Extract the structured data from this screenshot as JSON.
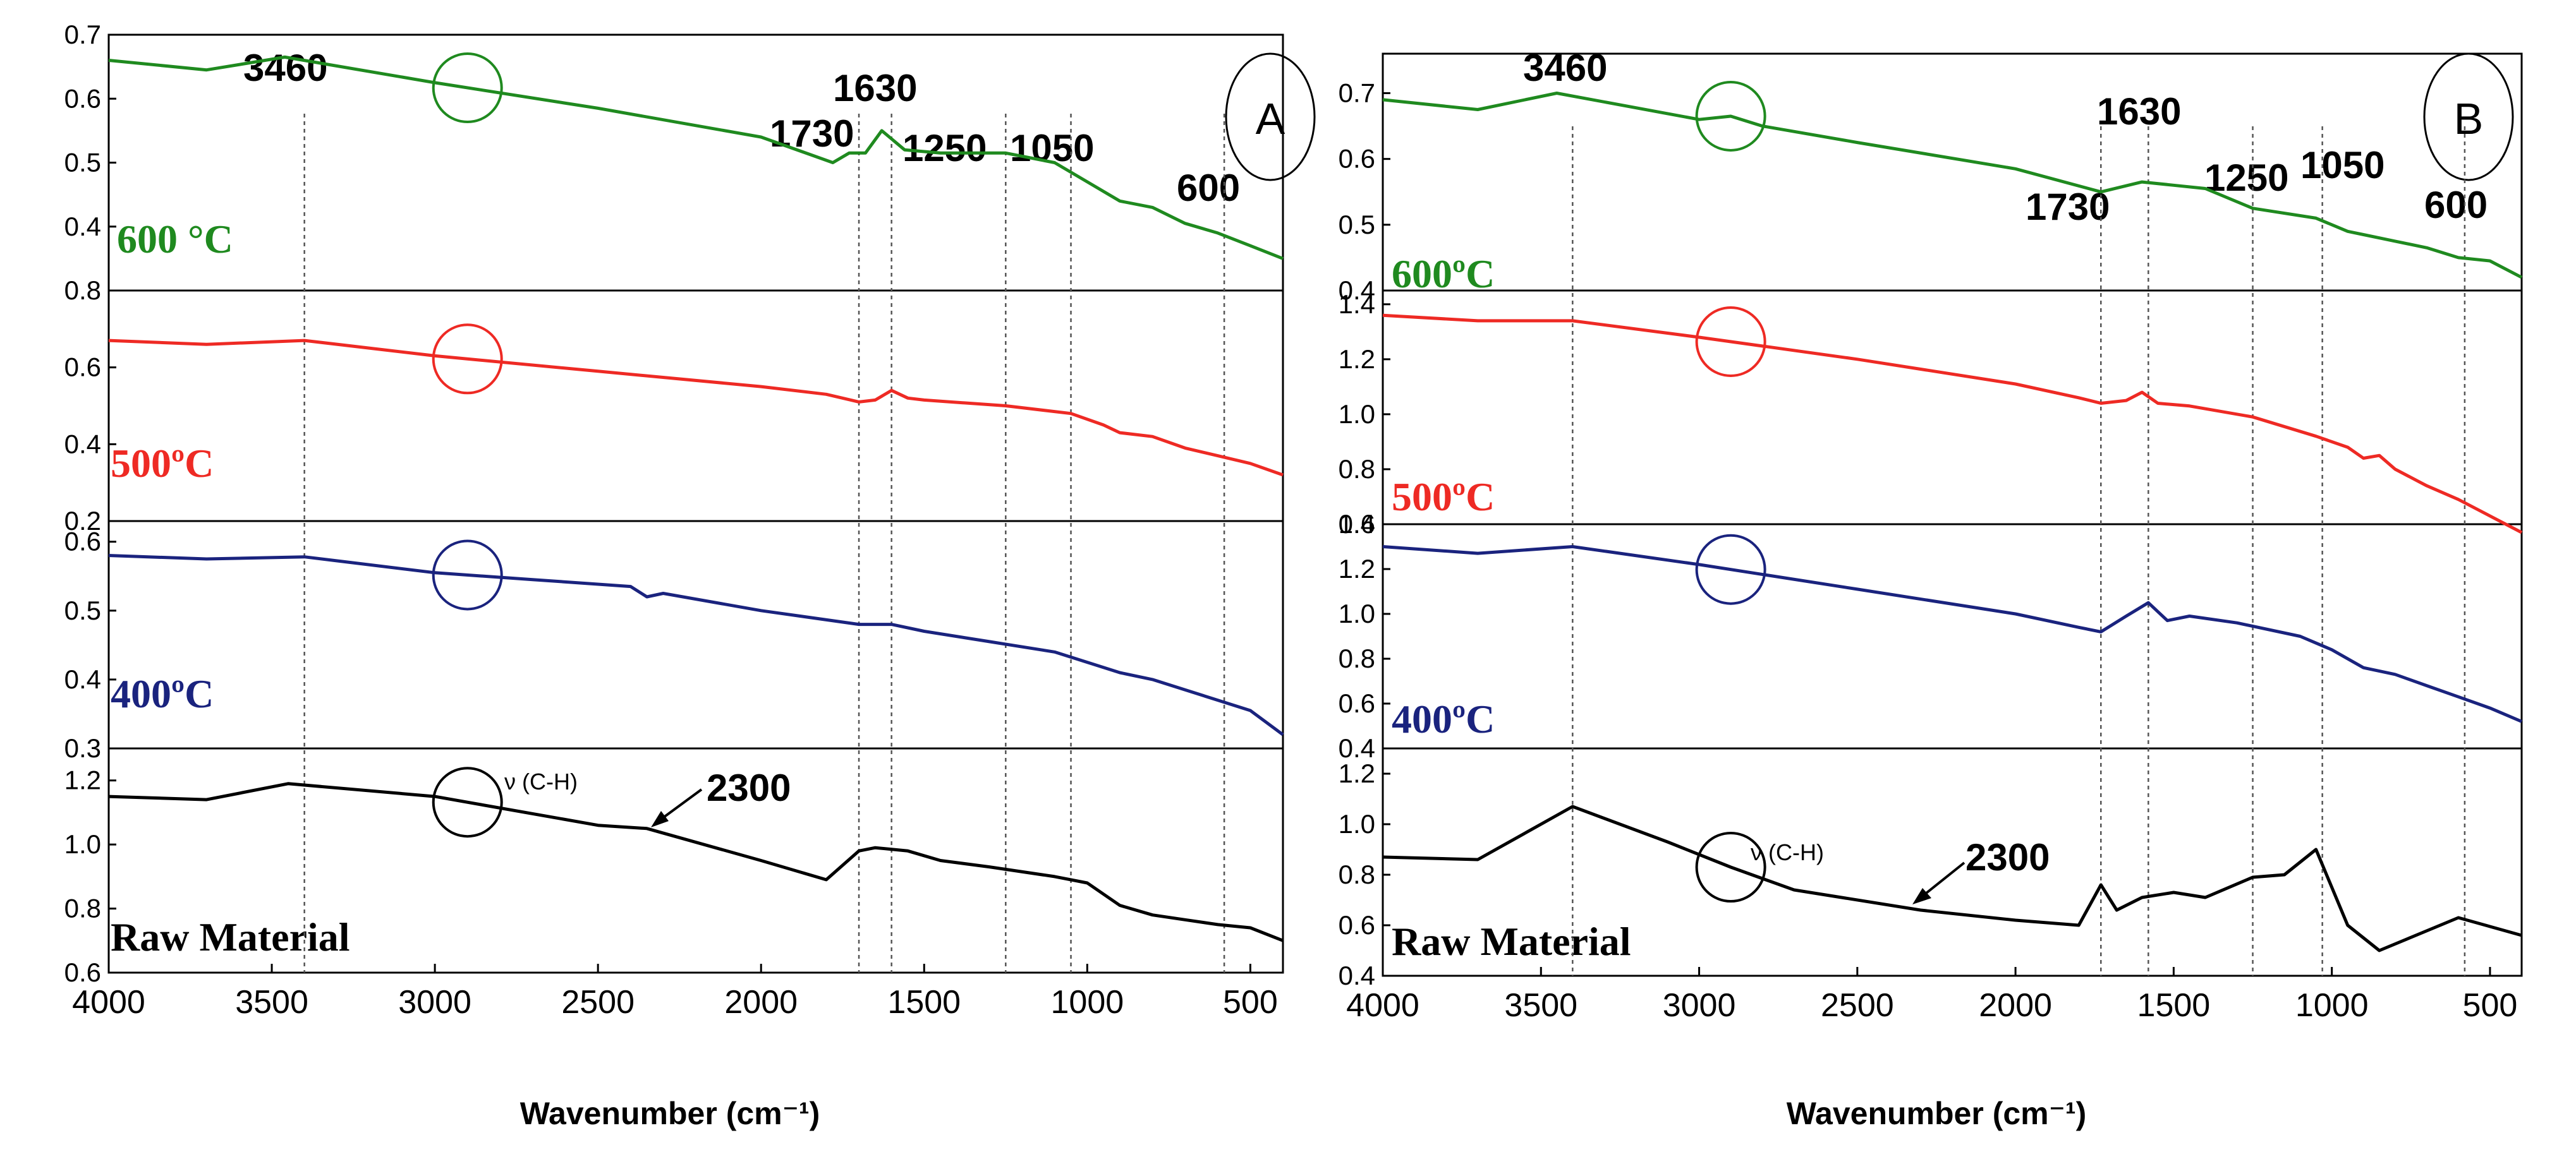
{
  "chart_data": [
    {
      "type": "line",
      "panel_label": "A",
      "xlabel": "Wavenumber (cm⁻¹)",
      "xlim": [
        4000,
        400
      ],
      "x_ticks": [
        4000,
        3500,
        3000,
        2500,
        2000,
        1500,
        1000,
        500
      ],
      "peak_labels": [
        "3460",
        "1730",
        "1630",
        "1250",
        "1050",
        "600"
      ],
      "marker_lines": [
        3400,
        1700,
        1600,
        1250,
        1050,
        580
      ],
      "subplots": [
        {
          "label": "600 °C",
          "color": "#1f8a1f",
          "ylim": [
            0.3,
            0.7
          ],
          "y_ticks": [
            "0.7",
            "0.6",
            "0.5",
            "0.4"
          ],
          "circle_x": 2900,
          "x": [
            4000,
            3700,
            3460,
            3000,
            2500,
            2000,
            1780,
            1730,
            1680,
            1630,
            1560,
            1450,
            1250,
            1100,
            1000,
            900,
            800,
            700,
            600,
            500,
            400
          ],
          "y": [
            0.66,
            0.645,
            0.665,
            0.625,
            0.585,
            0.54,
            0.5,
            0.515,
            0.515,
            0.55,
            0.52,
            0.515,
            0.515,
            0.5,
            0.47,
            0.44,
            0.43,
            0.405,
            0.39,
            0.37,
            0.35
          ]
        },
        {
          "label": "500ºC",
          "color": "#ee2a24",
          "ylim": [
            0.2,
            0.8
          ],
          "y_ticks": [
            "0.8",
            "0.6",
            "0.4",
            "0.2"
          ],
          "circle_x": 2900,
          "x": [
            4000,
            3700,
            3400,
            3000,
            2500,
            2000,
            1800,
            1700,
            1650,
            1600,
            1550,
            1500,
            1250,
            1050,
            950,
            900,
            800,
            700,
            600,
            500,
            400
          ],
          "y": [
            0.67,
            0.66,
            0.67,
            0.63,
            0.59,
            0.55,
            0.53,
            0.51,
            0.515,
            0.54,
            0.52,
            0.515,
            0.5,
            0.48,
            0.45,
            0.43,
            0.42,
            0.39,
            0.37,
            0.35,
            0.32
          ]
        },
        {
          "label": "400ºC",
          "color": "#1a237e",
          "ylim": [
            0.3,
            0.63
          ],
          "y_ticks": [
            "0.6",
            "0.5",
            "0.4",
            "0.3"
          ],
          "circle_x": 2900,
          "x": [
            4000,
            3700,
            3400,
            3000,
            2700,
            2400,
            2350,
            2300,
            2000,
            1700,
            1600,
            1500,
            1300,
            1100,
            1000,
            900,
            800,
            700,
            600,
            500,
            400
          ],
          "y": [
            0.58,
            0.575,
            0.578,
            0.555,
            0.545,
            0.535,
            0.52,
            0.525,
            0.5,
            0.48,
            0.48,
            0.47,
            0.455,
            0.44,
            0.425,
            0.41,
            0.4,
            0.385,
            0.37,
            0.355,
            0.32
          ]
        },
        {
          "label": "Raw Material",
          "color": "#000000",
          "ylim": [
            0.6,
            1.3
          ],
          "y_ticks": [
            "1.2",
            "1.0",
            "0.8",
            "0.6"
          ],
          "circle_x": 2900,
          "annotations": [
            "ν (C-H)",
            "2300"
          ],
          "x": [
            4000,
            3700,
            3450,
            3000,
            2500,
            2350,
            2000,
            1800,
            1700,
            1650,
            1550,
            1450,
            1300,
            1100,
            1000,
            900,
            800,
            700,
            600,
            500,
            400
          ],
          "y": [
            1.15,
            1.14,
            1.19,
            1.15,
            1.06,
            1.05,
            0.95,
            0.89,
            0.98,
            0.99,
            0.98,
            0.95,
            0.93,
            0.9,
            0.88,
            0.81,
            0.78,
            0.765,
            0.75,
            0.74,
            0.7
          ]
        }
      ]
    },
    {
      "type": "line",
      "panel_label": "B",
      "xlabel": "Wavenumber (cm⁻¹)",
      "xlim": [
        4000,
        400
      ],
      "x_ticks": [
        4000,
        3500,
        3000,
        2500,
        2000,
        1500,
        1000,
        500
      ],
      "peak_labels": [
        "3460",
        "1730",
        "1630",
        "1250",
        "1050",
        "600"
      ],
      "marker_lines": [
        3400,
        1730,
        1580,
        1250,
        1030,
        580
      ],
      "subplots": [
        {
          "label": "600ºC",
          "color": "#1f8a1f",
          "ylim": [
            0.4,
            0.76
          ],
          "y_ticks": [
            "0.7",
            "0.6",
            "0.5",
            "0.4"
          ],
          "circle_x": 2900,
          "x": [
            4000,
            3700,
            3450,
            3000,
            2900,
            2800,
            2500,
            2000,
            1730,
            1600,
            1500,
            1400,
            1250,
            1050,
            950,
            900,
            800,
            700,
            600,
            500,
            400
          ],
          "y": [
            0.69,
            0.675,
            0.7,
            0.66,
            0.665,
            0.65,
            0.625,
            0.585,
            0.55,
            0.565,
            0.56,
            0.555,
            0.525,
            0.51,
            0.49,
            0.485,
            0.475,
            0.465,
            0.45,
            0.445,
            0.42
          ]
        },
        {
          "label": "500ºC",
          "color": "#ee2a24",
          "ylim": [
            0.6,
            1.45
          ],
          "y_ticks": [
            "1.4",
            "1.2",
            "1.0",
            "0.8",
            "0.6"
          ],
          "circle_x": 2900,
          "x": [
            4000,
            3700,
            3400,
            3000,
            2500,
            2000,
            1800,
            1730,
            1650,
            1600,
            1550,
            1450,
            1250,
            1050,
            950,
            900,
            850,
            800,
            700,
            600,
            400
          ],
          "y": [
            1.36,
            1.34,
            1.34,
            1.28,
            1.2,
            1.11,
            1.06,
            1.04,
            1.05,
            1.08,
            1.04,
            1.03,
            0.99,
            0.92,
            0.88,
            0.84,
            0.85,
            0.8,
            0.74,
            0.69,
            0.57
          ]
        },
        {
          "label": "400ºC",
          "color": "#1a237e",
          "ylim": [
            0.4,
            1.4
          ],
          "y_ticks": [
            "1.4",
            "1.2",
            "1.0",
            "0.8",
            "0.6",
            "0.4"
          ],
          "circle_x": 2900,
          "x": [
            4000,
            3700,
            3400,
            3000,
            2500,
            2000,
            1800,
            1730,
            1650,
            1580,
            1520,
            1450,
            1300,
            1100,
            1000,
            900,
            800,
            700,
            600,
            500,
            400
          ],
          "y": [
            1.3,
            1.27,
            1.3,
            1.22,
            1.11,
            1.0,
            0.94,
            0.92,
            0.99,
            1.05,
            0.97,
            0.99,
            0.96,
            0.9,
            0.84,
            0.76,
            0.73,
            0.68,
            0.63,
            0.58,
            0.52
          ]
        },
        {
          "label": "Raw Material",
          "color": "#000000",
          "ylim": [
            0.4,
            1.3
          ],
          "y_ticks": [
            "1.2",
            "1.0",
            "0.8",
            "0.6",
            "0.4"
          ],
          "circle_x": 2900,
          "annotations": [
            "ν (C-H)",
            "2300"
          ],
          "x": [
            4000,
            3700,
            3400,
            3100,
            2900,
            2700,
            2300,
            2000,
            1800,
            1730,
            1680,
            1600,
            1500,
            1400,
            1250,
            1150,
            1050,
            950,
            850,
            600,
            400
          ],
          "y": [
            0.87,
            0.86,
            1.07,
            0.93,
            0.83,
            0.74,
            0.66,
            0.62,
            0.6,
            0.76,
            0.66,
            0.71,
            0.73,
            0.71,
            0.79,
            0.8,
            0.9,
            0.6,
            0.5,
            0.63,
            0.56
          ]
        }
      ]
    }
  ]
}
